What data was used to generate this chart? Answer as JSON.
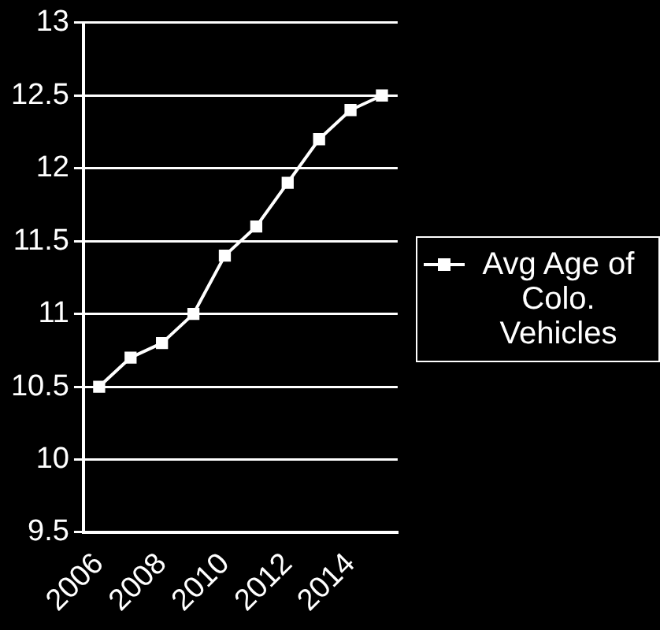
{
  "chart_data": {
    "type": "line",
    "categories": [
      "2006",
      null,
      "2008",
      null,
      "2010",
      null,
      "2012",
      null,
      "2014",
      null
    ],
    "series": [
      {
        "name": "Avg Age of Colo. Vehicles",
        "color": "#ffffff",
        "values": [
          10.5,
          10.7,
          10.8,
          11.0,
          11.4,
          11.6,
          11.9,
          12.2,
          12.4,
          12.5
        ]
      }
    ],
    "ylim": [
      9.5,
      13
    ],
    "yticks": [
      9.5,
      10,
      10.5,
      11,
      11.5,
      12,
      12.5,
      13
    ],
    "grid": "y",
    "legend": "right",
    "marker": "square",
    "line_style": "solid"
  }
}
